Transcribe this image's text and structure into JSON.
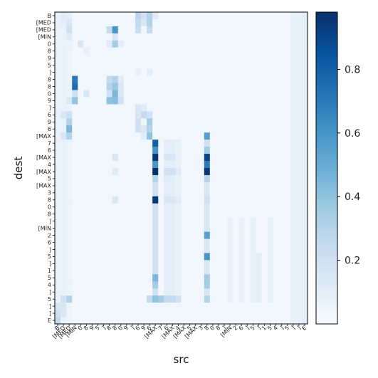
{
  "chart_data": {
    "type": "heatmap",
    "title": "",
    "xlabel": "src",
    "ylabel": "dest",
    "colormap": "Blues",
    "colorbar": {
      "ticks": [
        0.2,
        0.4,
        0.6,
        0.8
      ],
      "range": [
        0.0,
        0.98
      ]
    },
    "x_tick_labels": [
      "B",
      "[MED",
      "[MED",
      "[MIN",
      "0",
      "8",
      "9",
      "5",
      "]",
      "8",
      "8",
      "0",
      "9",
      "]",
      "6",
      "9",
      "6",
      "[MAX",
      "7",
      "6",
      "[MAX",
      "4",
      "[MAX",
      "5",
      "[MAX",
      "3",
      "8",
      "0",
      "8",
      "]",
      "[MIN",
      "2",
      "6",
      "]",
      "5",
      "]",
      "1",
      "5",
      "4",
      "]",
      "5",
      "]",
      "]",
      "E"
    ],
    "y_tick_labels": [
      "B",
      "[MED",
      "[MED",
      "[MIN",
      "0",
      "8",
      "9",
      "5",
      "]",
      "8",
      "8",
      "0",
      "9",
      "]",
      "6",
      "9",
      "6",
      "[MAX",
      "7",
      "6",
      "[MAX",
      "4",
      "[MAX",
      "5",
      "[MAX",
      "3",
      "8",
      "0",
      "8",
      "]",
      "[MIN",
      "2",
      "6",
      "]",
      "5",
      "]",
      "1",
      "5",
      "4",
      "]",
      "5",
      "]",
      "]",
      "E"
    ],
    "base_value": 0.03,
    "cells": [
      {
        "row": 0,
        "col": 1,
        "value": 0.12
      },
      {
        "row": 0,
        "col": 2,
        "value": 0.1
      },
      {
        "row": 0,
        "col": 14,
        "value": 0.28
      },
      {
        "row": 0,
        "col": 15,
        "value": 0.2
      },
      {
        "row": 0,
        "col": 16,
        "value": 0.3
      },
      {
        "row": 0,
        "col": 17,
        "value": 0.12
      },
      {
        "row": 1,
        "col": 1,
        "value": 0.1
      },
      {
        "row": 1,
        "col": 2,
        "value": 0.15
      },
      {
        "row": 1,
        "col": 14,
        "value": 0.25
      },
      {
        "row": 1,
        "col": 15,
        "value": 0.15
      },
      {
        "row": 1,
        "col": 16,
        "value": 0.3
      },
      {
        "row": 2,
        "col": 2,
        "value": 0.2
      },
      {
        "row": 2,
        "col": 9,
        "value": 0.25
      },
      {
        "row": 2,
        "col": 10,
        "value": 0.6
      },
      {
        "row": 2,
        "col": 14,
        "value": 0.22
      },
      {
        "row": 2,
        "col": 16,
        "value": 0.25
      },
      {
        "row": 3,
        "col": 2,
        "value": 0.12
      },
      {
        "row": 3,
        "col": 10,
        "value": 0.15
      },
      {
        "row": 4,
        "col": 4,
        "value": 0.15
      },
      {
        "row": 4,
        "col": 9,
        "value": 0.12
      },
      {
        "row": 4,
        "col": 10,
        "value": 0.35
      },
      {
        "row": 4,
        "col": 11,
        "value": 0.1
      },
      {
        "row": 5,
        "col": 5,
        "value": 0.08
      },
      {
        "row": 8,
        "col": 14,
        "value": 0.08
      },
      {
        "row": 8,
        "col": 16,
        "value": 0.1
      },
      {
        "row": 9,
        "col": 3,
        "value": 0.7
      },
      {
        "row": 9,
        "col": 9,
        "value": 0.25
      },
      {
        "row": 9,
        "col": 10,
        "value": 0.3
      },
      {
        "row": 9,
        "col": 11,
        "value": 0.12
      },
      {
        "row": 10,
        "col": 3,
        "value": 0.75
      },
      {
        "row": 10,
        "col": 9,
        "value": 0.3
      },
      {
        "row": 10,
        "col": 10,
        "value": 0.38
      },
      {
        "row": 10,
        "col": 11,
        "value": 0.15
      },
      {
        "row": 11,
        "col": 3,
        "value": 0.2
      },
      {
        "row": 11,
        "col": 5,
        "value": 0.15
      },
      {
        "row": 11,
        "col": 9,
        "value": 0.2
      },
      {
        "row": 11,
        "col": 10,
        "value": 0.45
      },
      {
        "row": 11,
        "col": 11,
        "value": 0.15
      },
      {
        "row": 12,
        "col": 2,
        "value": 0.15
      },
      {
        "row": 12,
        "col": 3,
        "value": 0.4
      },
      {
        "row": 12,
        "col": 9,
        "value": 0.4
      },
      {
        "row": 12,
        "col": 10,
        "value": 0.42
      },
      {
        "row": 12,
        "col": 11,
        "value": 0.2
      },
      {
        "row": 13,
        "col": 14,
        "value": 0.15
      },
      {
        "row": 13,
        "col": 15,
        "value": 0.12
      },
      {
        "row": 14,
        "col": 1,
        "value": 0.15
      },
      {
        "row": 14,
        "col": 2,
        "value": 0.2
      },
      {
        "row": 14,
        "col": 14,
        "value": 0.15
      },
      {
        "row": 14,
        "col": 15,
        "value": 0.25
      },
      {
        "row": 14,
        "col": 16,
        "value": 0.2
      },
      {
        "row": 15,
        "col": 2,
        "value": 0.3
      },
      {
        "row": 15,
        "col": 14,
        "value": 0.2
      },
      {
        "row": 15,
        "col": 16,
        "value": 0.35
      },
      {
        "row": 16,
        "col": 2,
        "value": 0.45
      },
      {
        "row": 16,
        "col": 14,
        "value": 0.2
      },
      {
        "row": 16,
        "col": 15,
        "value": 0.15
      },
      {
        "row": 16,
        "col": 16,
        "value": 0.3
      },
      {
        "row": 17,
        "col": 1,
        "value": 0.15
      },
      {
        "row": 17,
        "col": 2,
        "value": 0.3
      },
      {
        "row": 17,
        "col": 15,
        "value": 0.12
      },
      {
        "row": 17,
        "col": 16,
        "value": 0.4
      },
      {
        "row": 17,
        "col": 26,
        "value": 0.55
      },
      {
        "row": 18,
        "col": 17,
        "value": 0.8
      },
      {
        "row": 18,
        "col": 26,
        "value": 0.2
      },
      {
        "row": 19,
        "col": 17,
        "value": 0.6
      },
      {
        "row": 19,
        "col": 26,
        "value": 0.35
      },
      {
        "row": 20,
        "col": 10,
        "value": 0.15
      },
      {
        "row": 20,
        "col": 17,
        "value": 0.95
      },
      {
        "row": 20,
        "col": 19,
        "value": 0.15
      },
      {
        "row": 20,
        "col": 20,
        "value": 0.15
      },
      {
        "row": 20,
        "col": 26,
        "value": 0.9
      },
      {
        "row": 21,
        "col": 17,
        "value": 0.6
      },
      {
        "row": 21,
        "col": 26,
        "value": 0.7
      },
      {
        "row": 22,
        "col": 10,
        "value": 0.12
      },
      {
        "row": 22,
        "col": 17,
        "value": 0.98
      },
      {
        "row": 22,
        "col": 19,
        "value": 0.2
      },
      {
        "row": 22,
        "col": 20,
        "value": 0.2
      },
      {
        "row": 22,
        "col": 21,
        "value": 0.12
      },
      {
        "row": 22,
        "col": 26,
        "value": 0.95
      },
      {
        "row": 23,
        "col": 17,
        "value": 0.3
      },
      {
        "row": 23,
        "col": 19,
        "value": 0.12
      },
      {
        "row": 23,
        "col": 26,
        "value": 0.3
      },
      {
        "row": 24,
        "col": 17,
        "value": 0.2
      },
      {
        "row": 24,
        "col": 26,
        "value": 0.15
      },
      {
        "row": 25,
        "col": 17,
        "value": 0.15
      },
      {
        "row": 26,
        "col": 10,
        "value": 0.15
      },
      {
        "row": 26,
        "col": 17,
        "value": 0.95
      },
      {
        "row": 26,
        "col": 19,
        "value": 0.15
      },
      {
        "row": 26,
        "col": 20,
        "value": 0.15
      },
      {
        "row": 26,
        "col": 21,
        "value": 0.12
      },
      {
        "row": 26,
        "col": 26,
        "value": 0.2
      },
      {
        "row": 27,
        "col": 17,
        "value": 0.12
      },
      {
        "row": 31,
        "col": 26,
        "value": 0.55
      },
      {
        "row": 32,
        "col": 26,
        "value": 0.12
      },
      {
        "row": 34,
        "col": 26,
        "value": 0.6
      },
      {
        "row": 37,
        "col": 17,
        "value": 0.45
      },
      {
        "row": 37,
        "col": 26,
        "value": 0.35
      },
      {
        "row": 38,
        "col": 17,
        "value": 0.35
      },
      {
        "row": 38,
        "col": 26,
        "value": 0.35
      },
      {
        "row": 40,
        "col": 1,
        "value": 0.2
      },
      {
        "row": 40,
        "col": 2,
        "value": 0.3
      },
      {
        "row": 40,
        "col": 16,
        "value": 0.25
      },
      {
        "row": 40,
        "col": 17,
        "value": 0.4
      },
      {
        "row": 40,
        "col": 18,
        "value": 0.35
      },
      {
        "row": 40,
        "col": 19,
        "value": 0.25
      },
      {
        "row": 40,
        "col": 20,
        "value": 0.25
      },
      {
        "row": 40,
        "col": 21,
        "value": 0.2
      },
      {
        "row": 40,
        "col": 26,
        "value": 0.3
      },
      {
        "row": 41,
        "col": 0,
        "value": 0.15
      },
      {
        "row": 41,
        "col": 1,
        "value": 0.15
      },
      {
        "row": 42,
        "col": 0,
        "value": 0.2
      },
      {
        "row": 42,
        "col": 1,
        "value": 0.15
      },
      {
        "row": 43,
        "col": 0,
        "value": 0.25
      }
    ],
    "col_streaks": [
      {
        "col": 17,
        "rows": [
          18,
          40
        ],
        "value": 0.2
      },
      {
        "col": 26,
        "rows": [
          17,
          40
        ],
        "value": 0.15
      },
      {
        "col": 19,
        "rows": [
          18,
          40
        ],
        "value": 0.1
      },
      {
        "col": 20,
        "rows": [
          18,
          40
        ],
        "value": 0.1
      },
      {
        "col": 21,
        "rows": [
          18,
          40
        ],
        "value": 0.08
      },
      {
        "col": 0,
        "rows": [
          0,
          43
        ],
        "value": 0.07
      },
      {
        "col": 1,
        "rows": [
          0,
          43
        ],
        "value": 0.07
      },
      {
        "col": 2,
        "rows": [
          0,
          43
        ],
        "value": 0.06
      },
      {
        "col": 41,
        "rows": [
          0,
          43
        ],
        "value": 0.08
      },
      {
        "col": 42,
        "rows": [
          0,
          43
        ],
        "value": 0.08
      },
      {
        "col": 43,
        "rows": [
          0,
          43
        ],
        "value": 0.1
      },
      {
        "col": 30,
        "rows": [
          29,
          40
        ],
        "value": 0.07
      },
      {
        "col": 32,
        "rows": [
          29,
          40
        ],
        "value": 0.07
      },
      {
        "col": 34,
        "rows": [
          29,
          40
        ],
        "value": 0.08
      },
      {
        "col": 35,
        "rows": [
          34,
          40
        ],
        "value": 0.1
      },
      {
        "col": 37,
        "rows": [
          29,
          40
        ],
        "value": 0.08
      }
    ]
  }
}
